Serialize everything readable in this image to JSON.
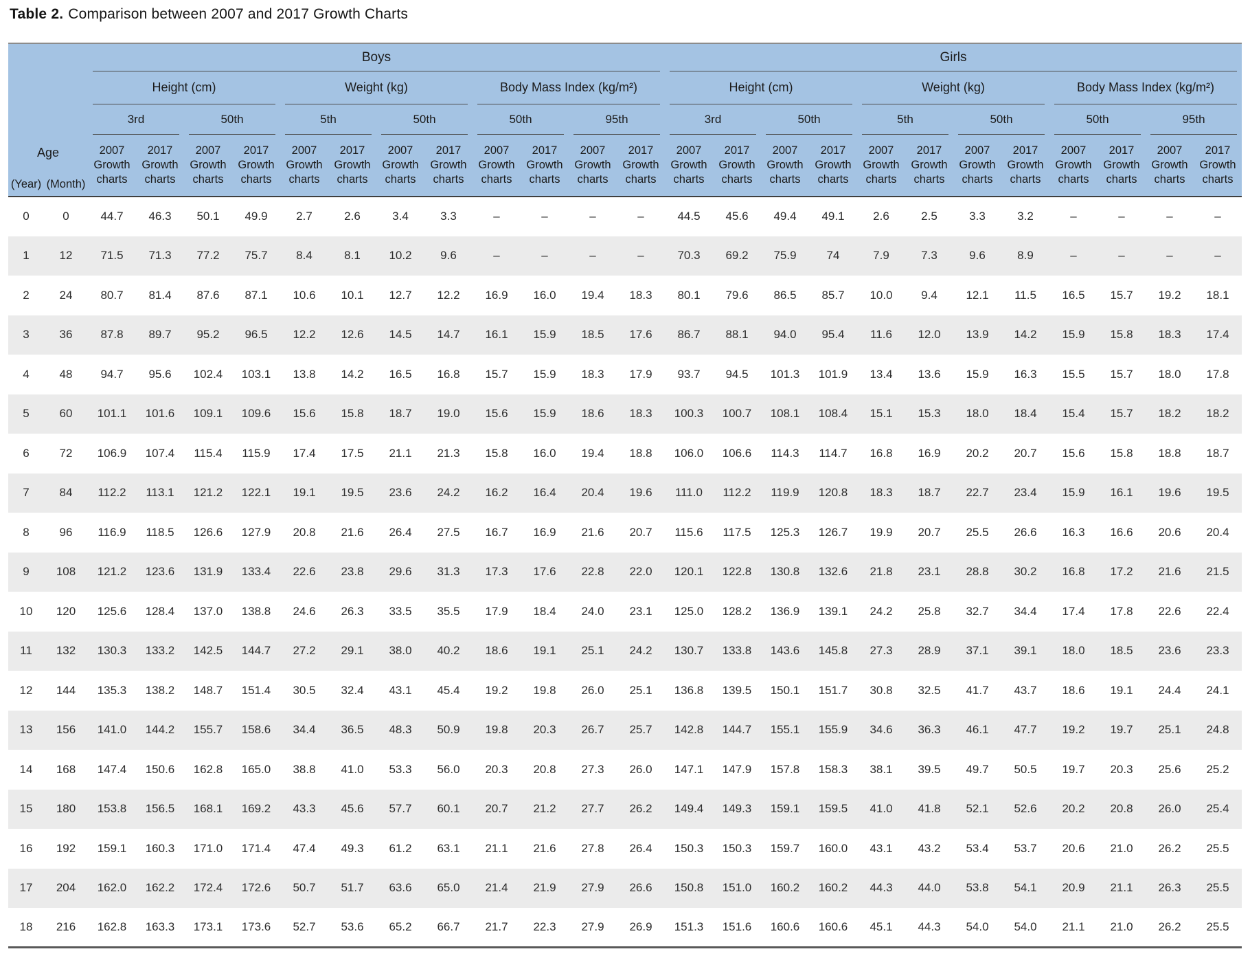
{
  "title": {
    "label": "Table 2.",
    "text": "Comparison between 2007 and 2017 Growth Charts"
  },
  "colors": {
    "header_bg": "#a4c3e3",
    "stripe_row_bg": "#ebebeb",
    "rule_dark": "#3f3f3f",
    "rule_light": "#8c8c8c"
  },
  "table": {
    "groups": [
      "Boys",
      "Girls"
    ],
    "measures": [
      "Height (cm)",
      "Weight (kg)",
      "Body Mass Index (kg/m²)"
    ],
    "percentiles": [
      "3rd",
      "50th",
      "5th",
      "50th",
      "50th",
      "95th"
    ],
    "years": [
      "2007",
      "2017"
    ],
    "col_sub": [
      "Growth",
      "charts"
    ],
    "age": {
      "label": "Age",
      "units": [
        "(Year)",
        "(Month)"
      ]
    },
    "rows": [
      [
        "0",
        "0",
        "44.7",
        "46.3",
        "50.1",
        "49.9",
        "2.7",
        "2.6",
        "3.4",
        "3.3",
        "–",
        "–",
        "–",
        "–",
        "44.5",
        "45.6",
        "49.4",
        "49.1",
        "2.6",
        "2.5",
        "3.3",
        "3.2",
        "–",
        "–",
        "–",
        "–"
      ],
      [
        "1",
        "12",
        "71.5",
        "71.3",
        "77.2",
        "75.7",
        "8.4",
        "8.1",
        "10.2",
        "9.6",
        "–",
        "–",
        "–",
        "–",
        "70.3",
        "69.2",
        "75.9",
        "74",
        "7.9",
        "7.3",
        "9.6",
        "8.9",
        "–",
        "–",
        "–",
        "–"
      ],
      [
        "2",
        "24",
        "80.7",
        "81.4",
        "87.6",
        "87.1",
        "10.6",
        "10.1",
        "12.7",
        "12.2",
        "16.9",
        "16.0",
        "19.4",
        "18.3",
        "80.1",
        "79.6",
        "86.5",
        "85.7",
        "10.0",
        "9.4",
        "12.1",
        "11.5",
        "16.5",
        "15.7",
        "19.2",
        "18.1"
      ],
      [
        "3",
        "36",
        "87.8",
        "89.7",
        "95.2",
        "96.5",
        "12.2",
        "12.6",
        "14.5",
        "14.7",
        "16.1",
        "15.9",
        "18.5",
        "17.6",
        "86.7",
        "88.1",
        "94.0",
        "95.4",
        "11.6",
        "12.0",
        "13.9",
        "14.2",
        "15.9",
        "15.8",
        "18.3",
        "17.4"
      ],
      [
        "4",
        "48",
        "94.7",
        "95.6",
        "102.4",
        "103.1",
        "13.8",
        "14.2",
        "16.5",
        "16.8",
        "15.7",
        "15.9",
        "18.3",
        "17.9",
        "93.7",
        "94.5",
        "101.3",
        "101.9",
        "13.4",
        "13.6",
        "15.9",
        "16.3",
        "15.5",
        "15.7",
        "18.0",
        "17.8"
      ],
      [
        "5",
        "60",
        "101.1",
        "101.6",
        "109.1",
        "109.6",
        "15.6",
        "15.8",
        "18.7",
        "19.0",
        "15.6",
        "15.9",
        "18.6",
        "18.3",
        "100.3",
        "100.7",
        "108.1",
        "108.4",
        "15.1",
        "15.3",
        "18.0",
        "18.4",
        "15.4",
        "15.7",
        "18.2",
        "18.2"
      ],
      [
        "6",
        "72",
        "106.9",
        "107.4",
        "115.4",
        "115.9",
        "17.4",
        "17.5",
        "21.1",
        "21.3",
        "15.8",
        "16.0",
        "19.4",
        "18.8",
        "106.0",
        "106.6",
        "114.3",
        "114.7",
        "16.8",
        "16.9",
        "20.2",
        "20.7",
        "15.6",
        "15.8",
        "18.8",
        "18.7"
      ],
      [
        "7",
        "84",
        "112.2",
        "113.1",
        "121.2",
        "122.1",
        "19.1",
        "19.5",
        "23.6",
        "24.2",
        "16.2",
        "16.4",
        "20.4",
        "19.6",
        "111.0",
        "112.2",
        "119.9",
        "120.8",
        "18.3",
        "18.7",
        "22.7",
        "23.4",
        "15.9",
        "16.1",
        "19.6",
        "19.5"
      ],
      [
        "8",
        "96",
        "116.9",
        "118.5",
        "126.6",
        "127.9",
        "20.8",
        "21.6",
        "26.4",
        "27.5",
        "16.7",
        "16.9",
        "21.6",
        "20.7",
        "115.6",
        "117.5",
        "125.3",
        "126.7",
        "19.9",
        "20.7",
        "25.5",
        "26.6",
        "16.3",
        "16.6",
        "20.6",
        "20.4"
      ],
      [
        "9",
        "108",
        "121.2",
        "123.6",
        "131.9",
        "133.4",
        "22.6",
        "23.8",
        "29.6",
        "31.3",
        "17.3",
        "17.6",
        "22.8",
        "22.0",
        "120.1",
        "122.8",
        "130.8",
        "132.6",
        "21.8",
        "23.1",
        "28.8",
        "30.2",
        "16.8",
        "17.2",
        "21.6",
        "21.5"
      ],
      [
        "10",
        "120",
        "125.6",
        "128.4",
        "137.0",
        "138.8",
        "24.6",
        "26.3",
        "33.5",
        "35.5",
        "17.9",
        "18.4",
        "24.0",
        "23.1",
        "125.0",
        "128.2",
        "136.9",
        "139.1",
        "24.2",
        "25.8",
        "32.7",
        "34.4",
        "17.4",
        "17.8",
        "22.6",
        "22.4"
      ],
      [
        "11",
        "132",
        "130.3",
        "133.2",
        "142.5",
        "144.7",
        "27.2",
        "29.1",
        "38.0",
        "40.2",
        "18.6",
        "19.1",
        "25.1",
        "24.2",
        "130.7",
        "133.8",
        "143.6",
        "145.8",
        "27.3",
        "28.9",
        "37.1",
        "39.1",
        "18.0",
        "18.5",
        "23.6",
        "23.3"
      ],
      [
        "12",
        "144",
        "135.3",
        "138.2",
        "148.7",
        "151.4",
        "30.5",
        "32.4",
        "43.1",
        "45.4",
        "19.2",
        "19.8",
        "26.0",
        "25.1",
        "136.8",
        "139.5",
        "150.1",
        "151.7",
        "30.8",
        "32.5",
        "41.7",
        "43.7",
        "18.6",
        "19.1",
        "24.4",
        "24.1"
      ],
      [
        "13",
        "156",
        "141.0",
        "144.2",
        "155.7",
        "158.6",
        "34.4",
        "36.5",
        "48.3",
        "50.9",
        "19.8",
        "20.3",
        "26.7",
        "25.7",
        "142.8",
        "144.7",
        "155.1",
        "155.9",
        "34.6",
        "36.3",
        "46.1",
        "47.7",
        "19.2",
        "19.7",
        "25.1",
        "24.8"
      ],
      [
        "14",
        "168",
        "147.4",
        "150.6",
        "162.8",
        "165.0",
        "38.8",
        "41.0",
        "53.3",
        "56.0",
        "20.3",
        "20.8",
        "27.3",
        "26.0",
        "147.1",
        "147.9",
        "157.8",
        "158.3",
        "38.1",
        "39.5",
        "49.7",
        "50.5",
        "19.7",
        "20.3",
        "25.6",
        "25.2"
      ],
      [
        "15",
        "180",
        "153.8",
        "156.5",
        "168.1",
        "169.2",
        "43.3",
        "45.6",
        "57.7",
        "60.1",
        "20.7",
        "21.2",
        "27.7",
        "26.2",
        "149.4",
        "149.3",
        "159.1",
        "159.5",
        "41.0",
        "41.8",
        "52.1",
        "52.6",
        "20.2",
        "20.8",
        "26.0",
        "25.4"
      ],
      [
        "16",
        "192",
        "159.1",
        "160.3",
        "171.0",
        "171.4",
        "47.4",
        "49.3",
        "61.2",
        "63.1",
        "21.1",
        "21.6",
        "27.8",
        "26.4",
        "150.3",
        "150.3",
        "159.7",
        "160.0",
        "43.1",
        "43.2",
        "53.4",
        "53.7",
        "20.6",
        "21.0",
        "26.2",
        "25.5"
      ],
      [
        "17",
        "204",
        "162.0",
        "162.2",
        "172.4",
        "172.6",
        "50.7",
        "51.7",
        "63.6",
        "65.0",
        "21.4",
        "21.9",
        "27.9",
        "26.6",
        "150.8",
        "151.0",
        "160.2",
        "160.2",
        "44.3",
        "44.0",
        "53.8",
        "54.1",
        "20.9",
        "21.1",
        "26.3",
        "25.5"
      ],
      [
        "18",
        "216",
        "162.8",
        "163.3",
        "173.1",
        "173.6",
        "52.7",
        "53.6",
        "65.2",
        "66.7",
        "21.7",
        "22.3",
        "27.9",
        "26.9",
        "151.3",
        "151.6",
        "160.6",
        "160.6",
        "45.1",
        "44.3",
        "54.0",
        "54.0",
        "21.1",
        "21.0",
        "26.2",
        "25.5"
      ]
    ]
  }
}
